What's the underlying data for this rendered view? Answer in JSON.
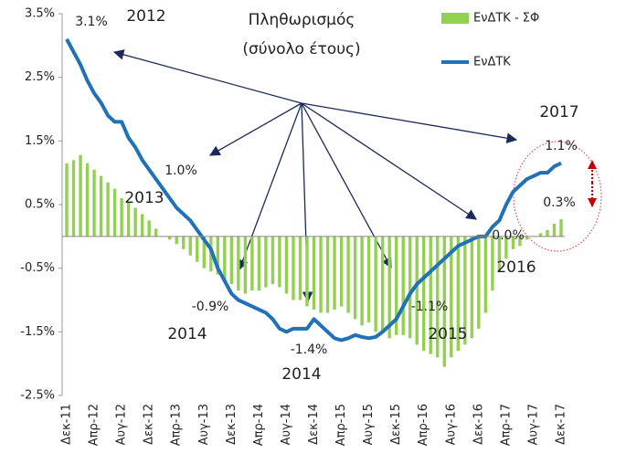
{
  "chart_data": {
    "type": "bar_line",
    "title": "Πληθωρισμός",
    "subtitle": "(σύνολο έτους)",
    "categories": [
      "Δεκ-11",
      null,
      null,
      null,
      "Απρ-12",
      null,
      null,
      null,
      "Αυγ-12",
      null,
      null,
      null,
      "Δεκ-12",
      null,
      null,
      null,
      "Απρ-13",
      null,
      null,
      null,
      "Αυγ-13",
      null,
      null,
      null,
      "Δεκ-13",
      null,
      null,
      null,
      "Απρ-14",
      null,
      null,
      null,
      "Αυγ-14",
      null,
      null,
      null,
      "Δεκ-14",
      null,
      null,
      null,
      "Απρ-15",
      null,
      null,
      null,
      "Αυγ-15",
      null,
      null,
      null,
      "Δεκ-15",
      null,
      null,
      null,
      "Απρ-16",
      null,
      null,
      null,
      "Αυγ-16",
      null,
      null,
      null,
      "Δεκ-16",
      null,
      null,
      null,
      "Απρ-17",
      null,
      null,
      null,
      "Αυγ-17",
      null,
      null,
      null,
      "Δεκ-17"
    ],
    "series": [
      {
        "name": "ΕνΔΤΚ - ΣΦ",
        "color": "#92d050",
        "kind": "bar",
        "values": [
          1.15,
          1.2,
          1.28,
          1.15,
          1.05,
          0.95,
          0.85,
          0.75,
          0.6,
          0.55,
          0.45,
          0.35,
          0.25,
          0.12,
          0.0,
          -0.05,
          -0.12,
          -0.2,
          -0.3,
          -0.4,
          -0.5,
          -0.55,
          -0.6,
          -0.7,
          -0.75,
          -0.85,
          -0.9,
          -0.85,
          -0.85,
          -0.8,
          -0.75,
          -0.8,
          -0.9,
          -1.0,
          -1.0,
          -1.1,
          -1.15,
          -1.2,
          -1.2,
          -1.15,
          -1.1,
          -1.2,
          -1.3,
          -1.4,
          -1.35,
          -1.5,
          -1.5,
          -1.6,
          -1.55,
          -1.55,
          -1.6,
          -1.7,
          -1.8,
          -1.85,
          -1.9,
          -2.05,
          -1.9,
          -1.8,
          -1.7,
          -1.6,
          -1.45,
          -1.2,
          -0.85,
          -0.55,
          -0.35,
          -0.2,
          -0.15,
          -0.05,
          0.0,
          0.05,
          0.1,
          0.2,
          0.27
        ]
      },
      {
        "name": "ΕνΔΤΚ",
        "color": "#1f72b8",
        "kind": "line",
        "values": [
          3.1,
          2.9,
          2.7,
          2.45,
          2.25,
          2.1,
          1.9,
          1.8,
          1.8,
          1.55,
          1.4,
          1.2,
          1.05,
          0.9,
          0.75,
          0.6,
          0.45,
          0.35,
          0.25,
          0.1,
          -0.05,
          -0.2,
          -0.5,
          -0.7,
          -0.9,
          -1.0,
          -1.05,
          -1.1,
          -1.15,
          -1.2,
          -1.3,
          -1.45,
          -1.5,
          -1.45,
          -1.45,
          -1.45,
          -1.3,
          -1.4,
          -1.5,
          -1.6,
          -1.63,
          -1.6,
          -1.55,
          -1.58,
          -1.6,
          -1.58,
          -1.5,
          -1.4,
          -1.3,
          -1.1,
          -0.9,
          -0.75,
          -0.65,
          -0.55,
          -0.45,
          -0.35,
          -0.25,
          -0.15,
          -0.1,
          -0.05,
          0.0,
          0.0,
          0.15,
          0.25,
          0.5,
          0.7,
          0.8,
          0.9,
          0.95,
          1.0,
          1.0,
          1.1,
          1.15
        ]
      }
    ],
    "ylim": [
      -2.5,
      3.5
    ],
    "yticks": [
      {
        "value": -2.5,
        "label": "-2.5%"
      },
      {
        "value": -1.5,
        "label": "-1.5%"
      },
      {
        "value": -0.5,
        "label": "-0.5%"
      },
      {
        "value": 0.5,
        "label": "0.5%"
      },
      {
        "value": 1.5,
        "label": "1.5%"
      },
      {
        "value": 2.5,
        "label": "2.5%"
      },
      {
        "value": 3.5,
        "label": "3.5%"
      }
    ],
    "annotations": [
      "3.1%",
      "2012",
      "1.0%",
      "2013",
      "-0.9%",
      "2014",
      "-1.4%",
      "2014",
      "-1.1%",
      "2015",
      "0.0%",
      "2016",
      "2017",
      "1.1%",
      "0.3%"
    ],
    "legend": "top-right"
  }
}
